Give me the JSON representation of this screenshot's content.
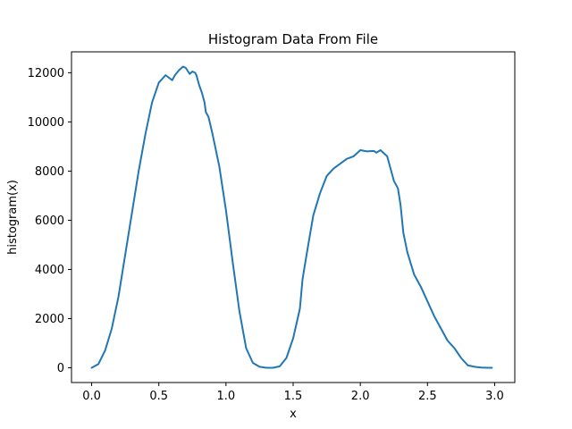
{
  "chart_data": {
    "type": "line",
    "title": "Histogram Data From File",
    "xlabel": "x",
    "ylabel": "histogram(x)",
    "xlim": [
      -0.15,
      3.15
    ],
    "ylim": [
      -600,
      12850
    ],
    "xticks": [
      0.0,
      0.5,
      1.0,
      1.5,
      2.0,
      2.5,
      3.0
    ],
    "xtick_labels": [
      "0.0",
      "0.5",
      "1.0",
      "1.5",
      "2.0",
      "2.5",
      "3.0"
    ],
    "yticks": [
      0,
      2000,
      4000,
      6000,
      8000,
      10000,
      12000
    ],
    "ytick_labels": [
      "0",
      "2000",
      "4000",
      "6000",
      "8000",
      "10000",
      "12000"
    ],
    "grid": false,
    "legend": false,
    "series": [
      {
        "color": "#1f77b4",
        "x": [
          0.0,
          0.05,
          0.1,
          0.15,
          0.2,
          0.25,
          0.3,
          0.35,
          0.4,
          0.45,
          0.5,
          0.55,
          0.6,
          0.62,
          0.65,
          0.68,
          0.7,
          0.73,
          0.75,
          0.77,
          0.78,
          0.8,
          0.82,
          0.84,
          0.85,
          0.87,
          0.9,
          0.95,
          1.0,
          1.05,
          1.1,
          1.15,
          1.2,
          1.25,
          1.3,
          1.35,
          1.4,
          1.45,
          1.5,
          1.55,
          1.57,
          1.6,
          1.65,
          1.7,
          1.75,
          1.8,
          1.85,
          1.9,
          1.95,
          2.0,
          2.05,
          2.1,
          2.12,
          2.15,
          2.18,
          2.2,
          2.22,
          2.25,
          2.28,
          2.3,
          2.32,
          2.35,
          2.4,
          2.45,
          2.5,
          2.55,
          2.6,
          2.65,
          2.7,
          2.75,
          2.8,
          2.85,
          2.9,
          2.95,
          2.98
        ],
        "y": [
          0,
          150,
          700,
          1600,
          2900,
          4600,
          6300,
          8000,
          9500,
          10800,
          11600,
          11900,
          11700,
          11900,
          12100,
          12250,
          12200,
          11950,
          12050,
          12000,
          11900,
          11500,
          11200,
          10800,
          10400,
          10200,
          9500,
          8200,
          6400,
          4300,
          2300,
          800,
          200,
          40,
          0,
          0,
          60,
          400,
          1200,
          2400,
          3600,
          4600,
          6200,
          7100,
          7800,
          8100,
          8300,
          8500,
          8600,
          8850,
          8800,
          8820,
          8750,
          8850,
          8700,
          8600,
          8200,
          7600,
          7300,
          6600,
          5500,
          4700,
          3800,
          3300,
          2700,
          2100,
          1600,
          1100,
          800,
          400,
          100,
          40,
          10,
          0,
          0
        ]
      }
    ]
  }
}
